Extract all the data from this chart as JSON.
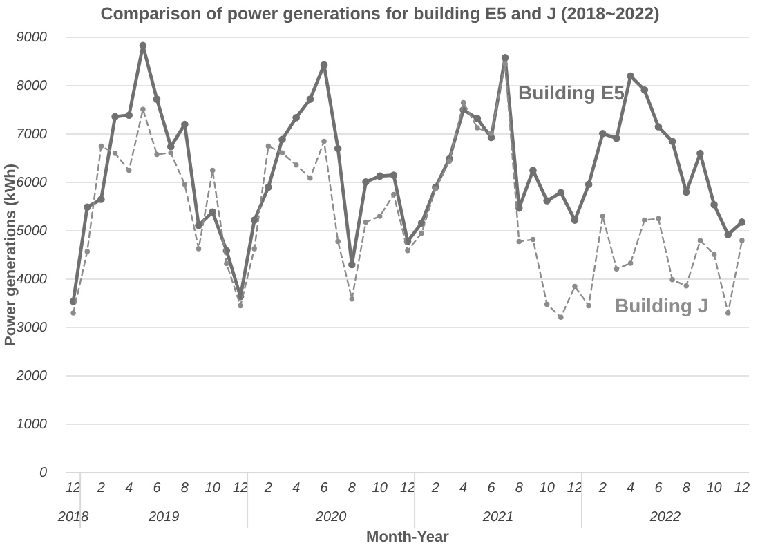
{
  "chart_data": {
    "type": "line",
    "title": "Comparison of power generations for building E5 and J (2018~2022)",
    "xlabel": "Month-Year",
    "ylabel": "Power generations (kWh)",
    "categories": [
      "12",
      null,
      "2",
      null,
      "4",
      null,
      "6",
      null,
      "8",
      null,
      "10",
      null,
      "12",
      null,
      "2",
      null,
      "4",
      null,
      "6",
      null,
      "8",
      null,
      "10",
      null,
      "12",
      null,
      "2",
      null,
      "4",
      null,
      "6",
      null,
      "8",
      null,
      "10",
      null,
      "12",
      null,
      "2",
      null,
      "4",
      null,
      "6",
      null,
      "8",
      null,
      "10",
      null,
      "12"
    ],
    "annotations": [
      "2018",
      "2019",
      "2020",
      "2021",
      "2022"
    ],
    "series": [
      {
        "name": "Building E5",
        "color": "#707070",
        "line_style": "solid",
        "values": [
          3540,
          5490,
          5650,
          7360,
          7390,
          8830,
          7720,
          6740,
          7200,
          5110,
          5390,
          4590,
          3640,
          5220,
          5900,
          6890,
          7340,
          7720,
          8430,
          6700,
          4300,
          6010,
          6130,
          6150,
          4780,
          5160,
          5900,
          6490,
          7500,
          7320,
          6930,
          8580,
          5470,
          6250,
          5620,
          5790,
          5220,
          5960,
          7010,
          6910,
          8200,
          7910,
          7150,
          6850,
          5800,
          6600,
          5540,
          4920,
          5180
        ]
      },
      {
        "name": "Building J",
        "color": "#8c8c8c",
        "line_style": "dashed",
        "values": [
          3300,
          4570,
          6750,
          6600,
          6250,
          7510,
          6580,
          6610,
          5960,
          4630,
          6250,
          4320,
          3450,
          4630,
          6750,
          6610,
          6360,
          6090,
          6850,
          4780,
          3590,
          5180,
          5300,
          5750,
          4590,
          4950,
          5870,
          6440,
          7650,
          7130,
          7010,
          8450,
          4780,
          4820,
          3480,
          3210,
          3850,
          3450,
          5300,
          4210,
          4330,
          5220,
          5250,
          3990,
          3860,
          4800,
          4510,
          3300,
          4800
        ]
      }
    ],
    "ylim": [
      0,
      9000
    ],
    "yticks": [
      0,
      1000,
      2000,
      3000,
      4000,
      5000,
      6000,
      7000,
      8000,
      9000
    ],
    "grid": "y",
    "legend": false,
    "marker": "circle"
  }
}
